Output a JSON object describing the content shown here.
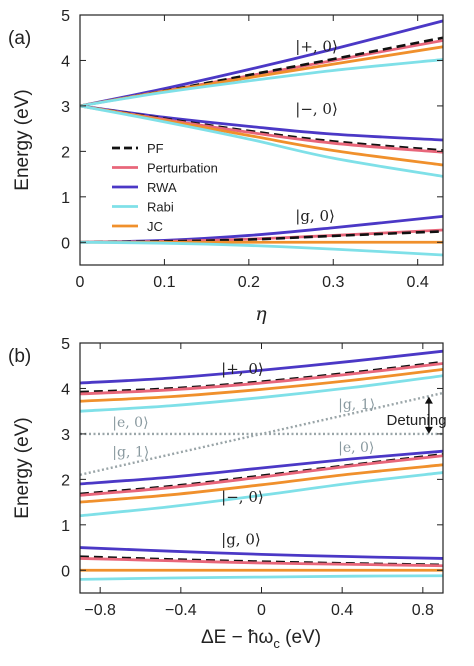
{
  "chart_data": [
    {
      "type": "line",
      "panel_label": "(a)",
      "xlabel": "η",
      "ylabel": "Energy (eV)",
      "xlim": [
        0,
        0.43
      ],
      "ylim": [
        -0.5,
        5
      ],
      "xticks": [
        "0",
        "0.1",
        "0.2",
        "0.3",
        "0.4"
      ],
      "xtick_values": [
        0,
        0.1,
        0.2,
        0.3,
        0.4
      ],
      "yticks": [
        "0",
        "1",
        "2",
        "3",
        "4",
        "5"
      ],
      "ytick_values": [
        0,
        1,
        2,
        3,
        4,
        5
      ],
      "legend": {
        "placement": "center-left",
        "entries": [
          {
            "name": "PF",
            "color": "#111111",
            "dashed": true
          },
          {
            "name": "Perturbation",
            "color": "#e8667a"
          },
          {
            "name": "RWA",
            "color": "#4b38c6"
          },
          {
            "name": "Rabi",
            "color": "#7fe0e8"
          },
          {
            "name": "JC",
            "color": "#f0902c"
          }
        ]
      },
      "annotations": [
        {
          "text": "|+, 0⟩",
          "x": 0.255,
          "y": 4.2
        },
        {
          "text": "|−, 0⟩",
          "x": 0.255,
          "y": 2.82
        },
        {
          "text": "|g, 0⟩",
          "x": 0.255,
          "y": 0.47
        }
      ],
      "series": [
        {
          "name": "RWA",
          "color": "#4b38c6",
          "x": [
            0,
            0.1,
            0.2,
            0.3,
            0.43
          ],
          "y": [
            3.0,
            3.38,
            3.8,
            4.25,
            4.87
          ]
        },
        {
          "name": "Perturbation",
          "color": "#e8667a",
          "x": [
            0,
            0.1,
            0.2,
            0.3,
            0.43
          ],
          "y": [
            3.0,
            3.33,
            3.66,
            4.0,
            4.44
          ]
        },
        {
          "name": "PF",
          "color": "#111111",
          "dashed": true,
          "x": [
            0,
            0.1,
            0.2,
            0.3,
            0.43
          ],
          "y": [
            3.0,
            3.33,
            3.68,
            4.03,
            4.5
          ]
        },
        {
          "name": "JC",
          "color": "#f0902c",
          "x": [
            0,
            0.1,
            0.2,
            0.3,
            0.43
          ],
          "y": [
            3.0,
            3.32,
            3.62,
            3.92,
            4.3
          ]
        },
        {
          "name": "Rabi",
          "color": "#7fe0e8",
          "x": [
            0,
            0.1,
            0.2,
            0.3,
            0.43
          ],
          "y": [
            3.0,
            3.3,
            3.55,
            3.78,
            4.02
          ]
        },
        {
          "name": "RWA",
          "color": "#4b38c6",
          "x": [
            0,
            0.1,
            0.2,
            0.3,
            0.43
          ],
          "y": [
            3.0,
            2.75,
            2.55,
            2.38,
            2.25
          ]
        },
        {
          "name": "PF",
          "color": "#111111",
          "dashed": true,
          "x": [
            0,
            0.1,
            0.2,
            0.3,
            0.43
          ],
          "y": [
            3.0,
            2.72,
            2.45,
            2.22,
            2.02
          ]
        },
        {
          "name": "Perturbation",
          "color": "#e8667a",
          "x": [
            0,
            0.1,
            0.2,
            0.3,
            0.43
          ],
          "y": [
            3.0,
            2.7,
            2.42,
            2.18,
            1.98
          ]
        },
        {
          "name": "JC",
          "color": "#f0902c",
          "x": [
            0,
            0.1,
            0.2,
            0.3,
            0.43
          ],
          "y": [
            3.0,
            2.68,
            2.35,
            2.02,
            1.7
          ]
        },
        {
          "name": "Rabi",
          "color": "#7fe0e8",
          "x": [
            0,
            0.1,
            0.2,
            0.3,
            0.43
          ],
          "y": [
            3.0,
            2.65,
            2.27,
            1.85,
            1.45
          ]
        },
        {
          "name": "RWA",
          "color": "#4b38c6",
          "x": [
            0,
            0.1,
            0.2,
            0.3,
            0.43
          ],
          "y": [
            0.0,
            0.04,
            0.15,
            0.32,
            0.57
          ]
        },
        {
          "name": "Perturbation",
          "color": "#e8667a",
          "x": [
            0,
            0.1,
            0.2,
            0.3,
            0.43
          ],
          "y": [
            0.0,
            0.02,
            0.07,
            0.15,
            0.27
          ]
        },
        {
          "name": "PF",
          "color": "#111111",
          "dashed": true,
          "x": [
            0,
            0.1,
            0.2,
            0.3,
            0.43
          ],
          "y": [
            0.0,
            0.02,
            0.06,
            0.14,
            0.24
          ]
        },
        {
          "name": "JC",
          "color": "#f0902c",
          "x": [
            0,
            0.1,
            0.2,
            0.3,
            0.43
          ],
          "y": [
            0.0,
            0.0,
            0.0,
            0.0,
            0.0
          ]
        },
        {
          "name": "Rabi",
          "color": "#7fe0e8",
          "x": [
            0,
            0.1,
            0.2,
            0.3,
            0.43
          ],
          "y": [
            0.0,
            -0.02,
            -0.07,
            -0.15,
            -0.28
          ]
        }
      ]
    },
    {
      "type": "line",
      "panel_label": "(b)",
      "xlabel": "ΔE − ħω",
      "xlabel_sub": "c",
      "xlabel_unit": " (eV)",
      "ylabel": "Energy (eV)",
      "xlim": [
        -0.9,
        0.9
      ],
      "ylim": [
        -0.5,
        5
      ],
      "xticks": [
        "−0.8",
        "−0.4",
        "0",
        "0.4",
        "0.8"
      ],
      "xtick_values": [
        -0.8,
        -0.4,
        0,
        0.4,
        0.8
      ],
      "yticks": [
        "0",
        "1",
        "2",
        "3",
        "4",
        "5"
      ],
      "ytick_values": [
        0,
        1,
        2,
        3,
        4,
        5
      ],
      "annotations": [
        {
          "text": "|+, 0⟩",
          "x": -0.2,
          "y": 4.32
        },
        {
          "text": "|−, 0⟩",
          "x": -0.2,
          "y": 1.5
        },
        {
          "text": "|g, 0⟩",
          "x": -0.2,
          "y": 0.57
        },
        {
          "text": "Detuning",
          "x": 0.62,
          "y": 3.2
        }
      ],
      "gray_annotations": [
        {
          "text": "|e, 0⟩",
          "x": -0.74,
          "y": 3.15
        },
        {
          "text": "|g, 1⟩",
          "x": -0.74,
          "y": 2.5
        },
        {
          "text": "|g, 1⟩",
          "x": 0.38,
          "y": 3.55
        },
        {
          "text": "|e, 0⟩",
          "x": 0.38,
          "y": 2.6
        }
      ],
      "detuning_arrow": {
        "x": 0.83,
        "y_from": 3.0,
        "y_to": 3.82
      },
      "uncoupled": [
        {
          "name": "|e, 0⟩",
          "color": "#9aa5a8",
          "dashed": true,
          "x": [
            -0.9,
            0.9
          ],
          "y": [
            3.0,
            3.0
          ]
        },
        {
          "name": "|g, 1⟩",
          "color": "#9aa5a8",
          "dashed": true,
          "x": [
            -0.9,
            0.9
          ],
          "y": [
            2.1,
            3.9
          ]
        }
      ],
      "series": [
        {
          "name": "RWA",
          "color": "#4b38c6",
          "x": [
            -0.9,
            -0.45,
            0,
            0.45,
            0.9
          ],
          "y": [
            4.12,
            4.23,
            4.4,
            4.6,
            4.82
          ]
        },
        {
          "name": "PF",
          "color": "#111111",
          "dashed": true,
          "x": [
            -0.9,
            -0.45,
            0,
            0.45,
            0.9
          ],
          "y": [
            3.92,
            4.0,
            4.15,
            4.35,
            4.58
          ]
        },
        {
          "name": "Perturbation",
          "color": "#e8667a",
          "x": [
            -0.9,
            -0.45,
            0,
            0.45,
            0.9
          ],
          "y": [
            3.88,
            3.97,
            4.12,
            4.32,
            4.55
          ]
        },
        {
          "name": "JC",
          "color": "#f0902c",
          "x": [
            -0.9,
            -0.45,
            0,
            0.45,
            0.9
          ],
          "y": [
            3.72,
            3.82,
            3.98,
            4.18,
            4.42
          ]
        },
        {
          "name": "Rabi",
          "color": "#7fe0e8",
          "x": [
            -0.9,
            -0.45,
            0,
            0.45,
            0.9
          ],
          "y": [
            3.5,
            3.62,
            3.8,
            4.02,
            4.28
          ]
        },
        {
          "name": "RWA",
          "color": "#4b38c6",
          "x": [
            -0.9,
            -0.45,
            0,
            0.45,
            0.9
          ],
          "y": [
            1.9,
            2.05,
            2.25,
            2.45,
            2.62
          ]
        },
        {
          "name": "PF",
          "color": "#111111",
          "dashed": true,
          "x": [
            -0.9,
            -0.45,
            0,
            0.45,
            0.9
          ],
          "y": [
            1.68,
            1.85,
            2.08,
            2.32,
            2.55
          ]
        },
        {
          "name": "Perturbation",
          "color": "#e8667a",
          "x": [
            -0.9,
            -0.45,
            0,
            0.45,
            0.9
          ],
          "y": [
            1.65,
            1.82,
            2.05,
            2.3,
            2.52
          ]
        },
        {
          "name": "JC",
          "color": "#f0902c",
          "x": [
            -0.9,
            -0.45,
            0,
            0.45,
            0.9
          ],
          "y": [
            1.5,
            1.66,
            1.88,
            2.12,
            2.32
          ]
        },
        {
          "name": "Rabi",
          "color": "#7fe0e8",
          "x": [
            -0.9,
            -0.45,
            0,
            0.45,
            0.9
          ],
          "y": [
            1.2,
            1.4,
            1.65,
            1.92,
            2.15
          ]
        },
        {
          "name": "RWA",
          "color": "#4b38c6",
          "x": [
            -0.9,
            -0.45,
            0,
            0.45,
            0.9
          ],
          "y": [
            0.5,
            0.42,
            0.35,
            0.3,
            0.26
          ]
        },
        {
          "name": "PF",
          "color": "#111111",
          "dashed": true,
          "x": [
            -0.9,
            -0.45,
            0,
            0.45,
            0.9
          ],
          "y": [
            0.3,
            0.24,
            0.19,
            0.15,
            0.12
          ]
        },
        {
          "name": "Perturbation",
          "color": "#e8667a",
          "x": [
            -0.9,
            -0.45,
            0,
            0.45,
            0.9
          ],
          "y": [
            0.26,
            0.21,
            0.16,
            0.13,
            0.1
          ]
        },
        {
          "name": "JC",
          "color": "#f0902c",
          "x": [
            -0.9,
            -0.45,
            0,
            0.45,
            0.9
          ],
          "y": [
            0.0,
            0.0,
            0.0,
            0.0,
            0.0
          ]
        },
        {
          "name": "Rabi",
          "color": "#7fe0e8",
          "x": [
            -0.9,
            -0.45,
            0,
            0.45,
            0.9
          ],
          "y": [
            -0.2,
            -0.17,
            -0.15,
            -0.13,
            -0.12
          ]
        }
      ]
    }
  ]
}
